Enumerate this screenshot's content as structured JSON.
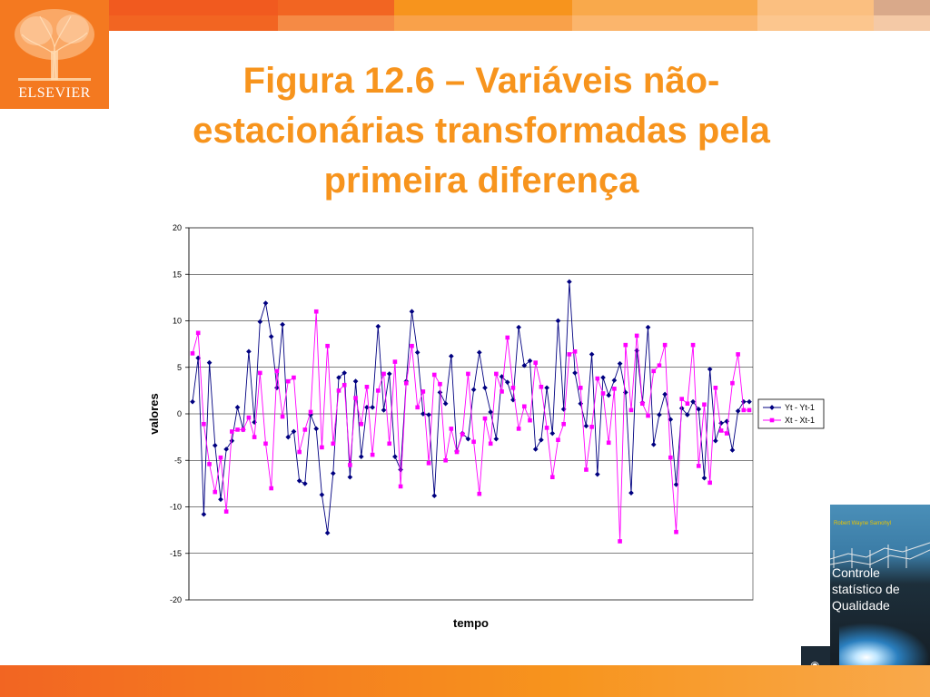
{
  "header": {
    "logo_text": "ELSEVIER",
    "title": "Figura 12.6 – Variáveis não-estacionárias transformadas pela primeira diferença"
  },
  "book": {
    "author": "Robert Wayne Samohyl",
    "title_lines": [
      "Controle",
      "statístico de",
      "Qualidade"
    ]
  },
  "colors": {
    "title": "#f7941d",
    "series1": "#000080",
    "series2": "#ff00ff",
    "band_dark": "#f15a1f",
    "band_light": "#f9b06a"
  },
  "chart_data": {
    "type": "line",
    "xlabel": "tempo",
    "ylabel": "valores",
    "ylim": [
      -20,
      20
    ],
    "yticks": [
      20,
      15,
      10,
      5,
      0,
      -5,
      -10,
      -15,
      -20
    ],
    "grid": true,
    "legend": "right",
    "x": [
      1,
      2,
      3,
      4,
      5,
      6,
      7,
      8,
      9,
      10,
      11,
      12,
      13,
      14,
      15,
      16,
      17,
      18,
      19,
      20,
      21,
      22,
      23,
      24,
      25,
      26,
      27,
      28,
      29,
      30,
      31,
      32,
      33,
      34,
      35,
      36,
      37,
      38,
      39,
      40,
      41,
      42,
      43,
      44,
      45,
      46,
      47,
      48,
      49,
      50,
      51,
      52,
      53,
      54,
      55,
      56,
      57,
      58,
      59,
      60,
      61,
      62,
      63,
      64,
      65,
      66,
      67,
      68,
      69,
      70,
      71,
      72,
      73,
      74,
      75,
      76,
      77,
      78,
      79,
      80,
      81,
      82,
      83,
      84,
      85,
      86,
      87,
      88,
      89,
      90,
      91,
      92,
      93,
      94,
      95,
      96,
      97,
      98,
      99,
      100
    ],
    "series": [
      {
        "name": "Yt - Yt-1",
        "values": [
          1.3,
          6.0,
          -10.8,
          5.5,
          -3.4,
          -9.2,
          -3.8,
          -2.9,
          0.7,
          -1.7,
          6.7,
          -0.9,
          9.9,
          11.9,
          8.3,
          2.8,
          9.6,
          -2.5,
          -1.9,
          -7.2,
          -7.5,
          -0.1,
          -1.6,
          -8.7,
          -12.8,
          -6.4,
          3.9,
          4.4,
          -6.8,
          3.5,
          -4.6,
          0.7,
          0.7,
          9.4,
          0.4,
          4.3,
          -4.6,
          -6.0,
          3.5,
          11.0,
          6.6,
          0.0,
          -0.1,
          -8.8,
          2.3,
          1.1,
          6.2,
          -4.0,
          -2.1,
          -2.7,
          2.6,
          6.6,
          2.8,
          0.2,
          -2.7,
          4.0,
          3.4,
          1.5,
          9.3,
          5.2,
          5.7,
          -3.8,
          -2.8,
          2.8,
          -2.1,
          10.0,
          0.5,
          14.2,
          4.4,
          1.1,
          -1.3,
          6.4,
          -6.5,
          3.9,
          2.0,
          3.6,
          5.4,
          2.3,
          -8.5,
          6.8,
          1.2,
          9.3,
          -3.3,
          -0.1,
          2.1,
          -0.6,
          -7.6,
          0.6,
          -0.1,
          1.3,
          0.5,
          -6.9,
          4.8,
          -2.9,
          -1.0,
          -0.8,
          -3.9,
          0.3,
          1.3,
          1.3
        ]
      },
      {
        "name": "Xt - Xt-1",
        "values": [
          6.5,
          8.7,
          -1.1,
          -5.4,
          -8.4,
          -4.7,
          -10.5,
          -1.9,
          -1.7,
          -1.7,
          -0.4,
          -2.5,
          4.4,
          -3.2,
          -8.0,
          4.6,
          -0.3,
          3.5,
          3.9,
          -4.1,
          -1.7,
          0.2,
          11.0,
          -3.6,
          7.3,
          -3.2,
          2.5,
          3.1,
          -5.5,
          1.7,
          -1.1,
          2.9,
          -4.4,
          2.5,
          4.3,
          -3.2,
          5.6,
          -7.8,
          3.3,
          7.3,
          0.7,
          2.4,
          -5.3,
          4.2,
          3.2,
          -5.0,
          -1.6,
          -4.1,
          -2.2,
          4.3,
          -3.0,
          -8.6,
          -0.5,
          -3.2,
          4.3,
          2.4,
          8.2,
          2.8,
          -1.6,
          0.8,
          -0.7,
          5.5,
          2.9,
          -1.5,
          -6.8,
          -2.8,
          -1.1,
          6.4,
          6.7,
          2.8,
          -6.0,
          -1.4,
          3.8,
          2.2,
          -3.1,
          2.7,
          -13.7,
          7.4,
          0.4,
          8.4,
          1.1,
          -0.2,
          4.6,
          5.2,
          7.4,
          -4.7,
          -12.7,
          1.6,
          1.1,
          7.4,
          -5.6,
          1.0,
          -7.4,
          2.8,
          -1.8,
          -2.1,
          3.3,
          6.4,
          0.4,
          0.4
        ]
      }
    ]
  }
}
